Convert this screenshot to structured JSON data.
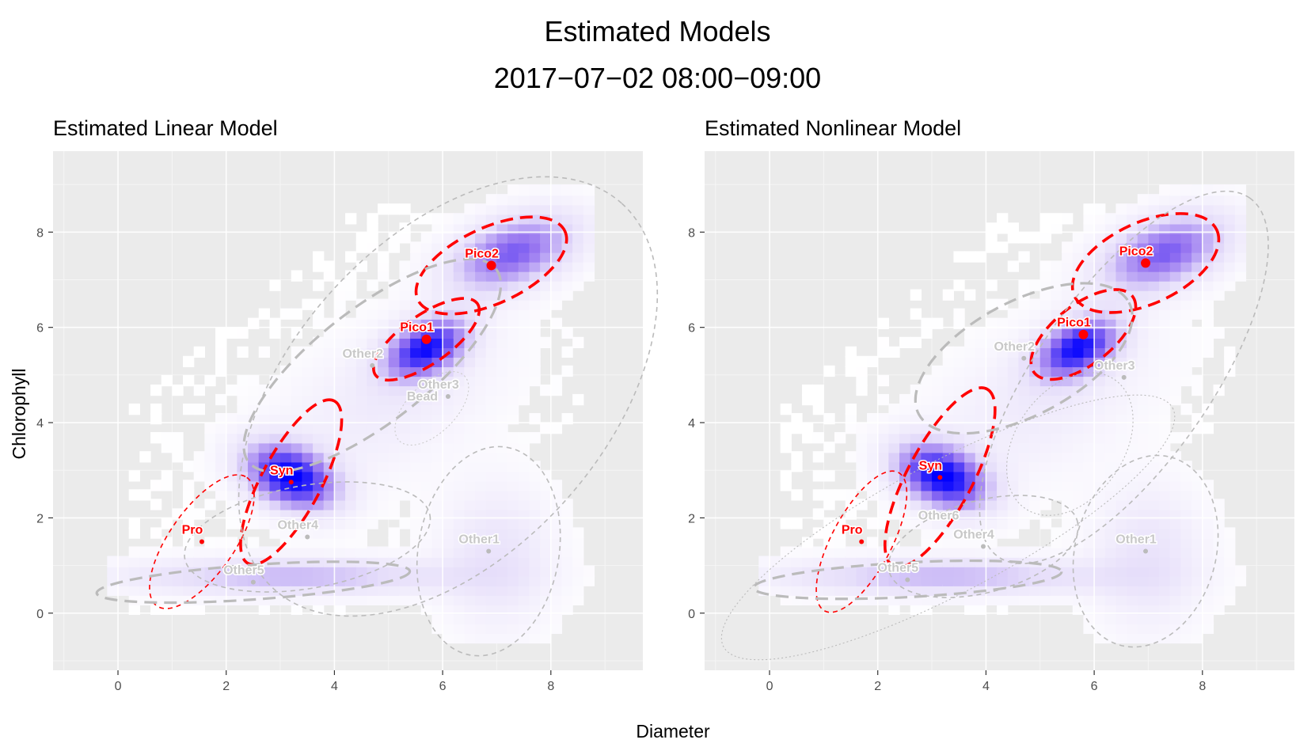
{
  "figure": {
    "title": "Estimated Models",
    "subtitle": "2017−07−02 08:00−09:00",
    "xlabel": "Diameter",
    "ylabel": "Chlorophyll"
  },
  "chart_data": [
    {
      "type": "heatmap",
      "title": "Estimated Linear Model",
      "xlabel": "Diameter",
      "ylabel": "Chlorophyll",
      "xlim": [
        -1.2,
        9.7
      ],
      "ylim": [
        -1.2,
        9.7
      ],
      "x_ticks": [
        0,
        2,
        4,
        6,
        8
      ],
      "y_ticks": [
        0,
        2,
        4,
        6,
        8
      ],
      "grid": true,
      "density_colors": [
        "#ffffff",
        "#e6defa",
        "#9370f0",
        "#0000ff"
      ],
      "density_peaks": [
        {
          "x": 3.2,
          "y": 2.9,
          "sx": 0.4,
          "sy": 0.6,
          "rot": 60,
          "w": 1.0
        },
        {
          "x": 5.7,
          "y": 5.6,
          "sx": 0.55,
          "sy": 0.35,
          "rot": 35,
          "w": 0.9
        },
        {
          "x": 7.3,
          "y": 7.6,
          "sx": 0.8,
          "sy": 0.45,
          "rot": 25,
          "w": 0.65
        },
        {
          "x": 3.2,
          "y": 0.8,
          "sx": 2.0,
          "sy": 0.25,
          "rot": 0,
          "w": 0.35
        },
        {
          "x": 7.0,
          "y": 1.2,
          "sx": 0.7,
          "sy": 1.0,
          "rot": 0,
          "w": 0.18
        },
        {
          "x": 5.0,
          "y": 4.5,
          "sx": 1.6,
          "sy": 0.9,
          "rot": 35,
          "w": 0.12
        }
      ],
      "components": [
        {
          "label": "Pico2",
          "x": 6.9,
          "y": 7.3,
          "a": 1.5,
          "b": 0.7,
          "rot": 25,
          "color": "#ff0000",
          "style": "bold-dashed",
          "point": "large"
        },
        {
          "label": "Pico1",
          "x": 5.7,
          "y": 5.75,
          "a": 1.15,
          "b": 0.45,
          "rot": 35,
          "color": "#ff0000",
          "style": "bold-dashed",
          "point": "large"
        },
        {
          "label": "Syn",
          "x": 3.2,
          "y": 2.75,
          "a": 1.7,
          "b": 0.55,
          "rot": 62,
          "color": "#ff0000",
          "style": "bold-dashed",
          "point": "small"
        },
        {
          "label": "Pro",
          "x": 1.55,
          "y": 1.5,
          "a": 1.45,
          "b": 0.6,
          "rot": 55,
          "color": "#ff0000",
          "style": "thin-dashed",
          "point": "small"
        },
        {
          "label": "Other2",
          "x": 4.7,
          "y": 5.2,
          "a": 2.9,
          "b": 1.05,
          "rot": 38,
          "color": "#bbbbbb",
          "style": "bold-dashed",
          "point": "small"
        },
        {
          "label": "Other3",
          "x": 6.1,
          "y": 4.55,
          "a": 4.8,
          "b": 2.9,
          "rot": 48,
          "color": "#bbbbbb",
          "style": "thin-dashed",
          "point": "small"
        },
        {
          "label": "Bead",
          "x": 5.8,
          "y": 4.3,
          "a": 0.85,
          "b": 0.45,
          "rot": 45,
          "color": "#cccccc",
          "style": "dotted",
          "point": "none"
        },
        {
          "label": "Other4",
          "x": 3.5,
          "y": 1.6,
          "a": 2.3,
          "b": 0.95,
          "rot": 10,
          "color": "#bbbbbb",
          "style": "thin-dashed",
          "point": "small"
        },
        {
          "label": "Other5",
          "x": 2.5,
          "y": 0.65,
          "a": 2.9,
          "b": 0.32,
          "rot": 4,
          "color": "#bbbbbb",
          "style": "bold-dashed",
          "point": "small"
        },
        {
          "label": "Other1",
          "x": 6.85,
          "y": 1.3,
          "a": 1.95,
          "b": 1.3,
          "rot": 80,
          "color": "#bbbbbb",
          "style": "thin-dashed",
          "point": "small"
        }
      ]
    },
    {
      "type": "heatmap",
      "title": "Estimated Nonlinear Model",
      "xlabel": "Diameter",
      "ylabel": "Chlorophyll",
      "xlim": [
        -1.2,
        9.7
      ],
      "ylim": [
        -1.2,
        9.7
      ],
      "x_ticks": [
        0,
        2,
        4,
        6,
        8
      ],
      "y_ticks": [
        0,
        2,
        4,
        6,
        8
      ],
      "grid": true,
      "density_colors": [
        "#ffffff",
        "#e6defa",
        "#9370f0",
        "#0000ff"
      ],
      "density_peaks": [
        {
          "x": 3.2,
          "y": 2.9,
          "sx": 0.4,
          "sy": 0.6,
          "rot": 60,
          "w": 1.0
        },
        {
          "x": 5.7,
          "y": 5.6,
          "sx": 0.55,
          "sy": 0.35,
          "rot": 35,
          "w": 0.9
        },
        {
          "x": 7.3,
          "y": 7.6,
          "sx": 0.8,
          "sy": 0.45,
          "rot": 25,
          "w": 0.65
        },
        {
          "x": 3.2,
          "y": 0.8,
          "sx": 2.0,
          "sy": 0.25,
          "rot": 0,
          "w": 0.35
        },
        {
          "x": 7.0,
          "y": 1.2,
          "sx": 0.7,
          "sy": 1.0,
          "rot": 0,
          "w": 0.18
        },
        {
          "x": 5.0,
          "y": 4.5,
          "sx": 1.6,
          "sy": 0.9,
          "rot": 35,
          "w": 0.12
        }
      ],
      "components": [
        {
          "label": "Pico2",
          "x": 6.95,
          "y": 7.35,
          "a": 1.45,
          "b": 0.75,
          "rot": 25,
          "color": "#ff0000",
          "style": "bold-dashed",
          "point": "large"
        },
        {
          "label": "Pico1",
          "x": 5.8,
          "y": 5.85,
          "a": 1.15,
          "b": 0.55,
          "rot": 38,
          "color": "#ff0000",
          "style": "bold-dashed",
          "point": "large"
        },
        {
          "label": "Syn",
          "x": 3.15,
          "y": 2.85,
          "a": 1.85,
          "b": 0.6,
          "rot": 62,
          "color": "#ff0000",
          "style": "bold-dashed",
          "point": "small"
        },
        {
          "label": "Pro",
          "x": 1.7,
          "y": 1.5,
          "a": 1.45,
          "b": 0.55,
          "rot": 62,
          "color": "#ff0000",
          "style": "thin-dashed",
          "point": "small"
        },
        {
          "label": "Other2",
          "x": 4.7,
          "y": 5.35,
          "a": 2.2,
          "b": 1.05,
          "rot": 28,
          "color": "#bbbbbb",
          "style": "bold-dashed",
          "point": "small"
        },
        {
          "label": "Other3",
          "x": 6.55,
          "y": 4.95,
          "a": 4.05,
          "b": 1.6,
          "rot": 55,
          "color": "#bbbbbb",
          "style": "thin-dashed",
          "point": "small"
        },
        {
          "label": "Other6",
          "x": 3.3,
          "y": 1.8,
          "a": 4.7,
          "b": 1.2,
          "rot": 28,
          "color": "#bbbbbb",
          "style": "dotted",
          "point": "none"
        },
        {
          "label": "Other4",
          "x": 3.95,
          "y": 1.4,
          "a": 1.8,
          "b": 0.85,
          "rot": 15,
          "color": "#bbbbbb",
          "style": "thin-dashed",
          "point": "small"
        },
        {
          "label": "Other5",
          "x": 2.55,
          "y": 0.7,
          "a": 2.85,
          "b": 0.32,
          "rot": 3,
          "color": "#bbbbbb",
          "style": "bold-dashed",
          "point": "small"
        },
        {
          "label": "Other1",
          "x": 6.95,
          "y": 1.3,
          "a": 1.8,
          "b": 1.3,
          "rot": 75,
          "color": "#bbbbbb",
          "style": "thin-dashed",
          "point": "small"
        },
        {
          "label": "",
          "x": 5.55,
          "y": 3.55,
          "a": 1.45,
          "b": 1.0,
          "rot": 55,
          "color": "#bbbbbb",
          "style": "dotted",
          "point": "none"
        }
      ]
    }
  ]
}
